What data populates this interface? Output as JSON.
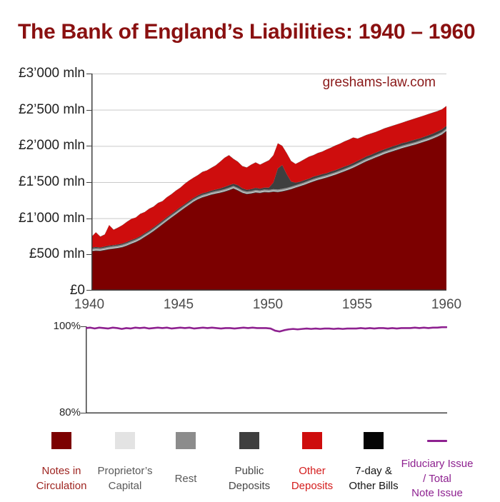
{
  "page": {
    "title": "The Bank of England’s Liabilities: 1940 – 1960",
    "watermark": "greshams-law.com"
  },
  "main_chart": {
    "y_labels": [
      "£3’000 mln",
      "£2’500 mln",
      "£2’000 mln",
      "£1’500 mln",
      "£1’000 mln",
      "£500 mln",
      "£0"
    ],
    "x_labels": [
      "1940",
      "1945",
      "1950",
      "1955",
      "1960"
    ]
  },
  "ratio_chart": {
    "y_top_label": "100%",
    "y_bottom_label": "80%"
  },
  "legend": {
    "items": [
      {
        "label": "Notes in Circulation",
        "lines": [
          "Notes in",
          "Circulation"
        ],
        "color": "#7c0000",
        "text_color": "#9e2420",
        "swatch": "square"
      },
      {
        "label": "Proprietor’s Capital",
        "lines": [
          "Proprietor’s",
          "Capital"
        ],
        "color": "#e3e3e3",
        "text_color": "#595959",
        "swatch": "square"
      },
      {
        "label": "Rest",
        "lines": [
          "Rest"
        ],
        "color": "#8c8c8c",
        "text_color": "#595959",
        "swatch": "square"
      },
      {
        "label": "Public Deposits",
        "lines": [
          "Public",
          "Deposits"
        ],
        "color": "#3f3f3f",
        "text_color": "#474747",
        "swatch": "square"
      },
      {
        "label": "Other Deposits",
        "lines": [
          "Other",
          "Deposits"
        ],
        "color": "#ce0d0d",
        "text_color": "#d41c1c",
        "swatch": "square"
      },
      {
        "label": "7-day & Other Bills",
        "lines": [
          "7-day &",
          "Other Bills"
        ],
        "color": "#050505",
        "text_color": "#141414",
        "swatch": "square"
      },
      {
        "label": "Fiduciary Issue / Total Note Issue",
        "lines": [
          "Fiduciary Issue",
          "/ Total",
          "Note Issue"
        ],
        "color": "#8e2190",
        "text_color": "#8e2190",
        "swatch": "line"
      }
    ]
  },
  "chart_data": [
    {
      "type": "area",
      "stacked": true,
      "title": "The Bank of England’s Liabilities: 1940 – 1960",
      "ylabel": "£ mln",
      "ylim": [
        0,
        3000
      ],
      "y_ticks": [
        0,
        500,
        1000,
        1500,
        2000,
        2500,
        3000
      ],
      "x_range": [
        1940,
        1960
      ],
      "x_ticks": [
        1940,
        1945,
        1950,
        1955,
        1960
      ],
      "x_start": 1940,
      "x_step": 0.25,
      "grid": "horizontal",
      "legend_position": "bottom",
      "series": [
        {
          "name": "Notes in Circulation",
          "color": "#7c0000",
          "values": [
            545,
            552,
            549,
            560,
            572,
            580,
            588,
            601,
            622,
            648,
            672,
            703,
            742,
            780,
            822,
            868,
            915,
            962,
            1008,
            1052,
            1098,
            1142,
            1185,
            1228,
            1262,
            1288,
            1306,
            1326,
            1340,
            1352,
            1368,
            1388,
            1412,
            1385,
            1352,
            1335,
            1342,
            1356,
            1350,
            1362,
            1358,
            1368,
            1362,
            1372,
            1385,
            1402,
            1422,
            1442,
            1462,
            1486,
            1508,
            1528,
            1545,
            1562,
            1582,
            1602,
            1625,
            1648,
            1672,
            1698,
            1728,
            1758,
            1788,
            1812,
            1838,
            1862,
            1888,
            1908,
            1928,
            1948,
            1968,
            1985,
            2002,
            2018,
            2038,
            2058,
            2078,
            2102,
            2128,
            2158,
            2205
          ]
        },
        {
          "name": "Proprietor’s Capital",
          "color": "#e3e3e3",
          "constant": 15
        },
        {
          "name": "Rest",
          "color": "#8f8f8f",
          "constant": 20
        },
        {
          "name": "Public Deposits",
          "color": "#3f3f3f",
          "values": [
            14,
            16,
            13,
            15,
            17,
            14,
            16,
            15,
            16,
            18,
            15,
            17,
            18,
            16,
            19,
            17,
            18,
            20,
            17,
            19,
            20,
            18,
            21,
            19,
            20,
            22,
            19,
            21,
            22,
            26,
            30,
            34,
            30,
            38,
            28,
            24,
            26,
            30,
            24,
            28,
            30,
            90,
            290,
            330,
            190,
            70,
            36,
            28,
            30,
            26,
            32,
            28,
            30,
            26,
            30,
            28,
            30,
            32,
            28,
            30,
            32,
            30,
            34,
            30,
            32,
            34,
            30,
            32,
            34,
            32,
            36,
            32,
            34,
            36,
            32,
            34,
            36,
            34,
            38,
            36,
            38
          ]
        },
        {
          "name": "Other Deposits",
          "color": "#ce0d0d",
          "values": [
            146,
            202,
            148,
            165,
            281,
            211,
            231,
            254,
            277,
            289,
            288,
            305,
            290,
            299,
            284,
            290,
            267,
            273,
            270,
            274,
            267,
            280,
            279,
            278,
            278,
            295,
            300,
            313,
            333,
            367,
            402,
            413,
            343,
            322,
            305,
            306,
            337,
            349,
            331,
            345,
            377,
            377,
            348,
            263,
            290,
            283,
            257,
            275,
            288,
            303,
            295,
            309,
            310,
            327,
            328,
            340,
            340,
            345,
            350,
            352,
            305,
            302,
            293,
            293,
            285,
            284,
            287,
            285,
            283,
            285,
            281,
            288,
            289,
            291,
            295,
            293,
            291,
            289,
            279,
            276,
            272
          ]
        },
        {
          "name": "7-day & Other Bills",
          "color": "#000000",
          "constant": 2
        }
      ]
    },
    {
      "type": "line",
      "name": "Fiduciary Issue / Total Note Issue",
      "color": "#8e2190",
      "ylim": [
        80,
        100
      ],
      "y_ticks": [
        80,
        100
      ],
      "x_range": [
        1940,
        1960
      ],
      "x_start": 1940,
      "x_step": 0.25,
      "unit": "%",
      "values": [
        99.6,
        99.7,
        99.5,
        99.7,
        99.6,
        99.5,
        99.7,
        99.6,
        99.4,
        99.6,
        99.5,
        99.7,
        99.6,
        99.7,
        99.5,
        99.6,
        99.7,
        99.6,
        99.7,
        99.5,
        99.6,
        99.7,
        99.6,
        99.7,
        99.5,
        99.6,
        99.7,
        99.6,
        99.7,
        99.6,
        99.5,
        99.6,
        99.6,
        99.5,
        99.6,
        99.7,
        99.6,
        99.7,
        99.6,
        99.6,
        99.6,
        99.5,
        99.0,
        98.8,
        99.1,
        99.3,
        99.4,
        99.3,
        99.4,
        99.5,
        99.4,
        99.5,
        99.4,
        99.5,
        99.5,
        99.4,
        99.5,
        99.4,
        99.5,
        99.5,
        99.5,
        99.6,
        99.5,
        99.6,
        99.5,
        99.6,
        99.6,
        99.5,
        99.6,
        99.5,
        99.6,
        99.6,
        99.6,
        99.7,
        99.6,
        99.7,
        99.6,
        99.7,
        99.7,
        99.8,
        99.8
      ]
    }
  ]
}
